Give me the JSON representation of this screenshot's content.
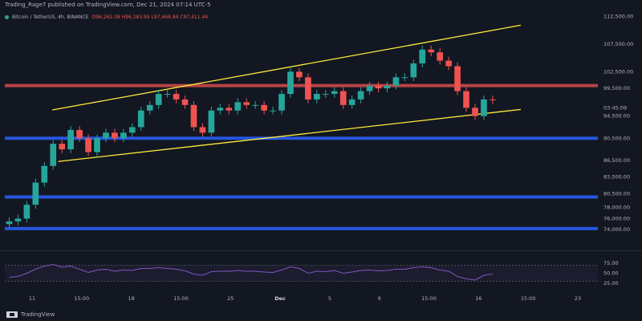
{
  "header": {
    "publisher": "Trading_Rage7 published on TradingView.com, Dec 21, 2024 07:14 UTC-5"
  },
  "legend": {
    "symbol": "Bitcoin / TetherUS, 4h, BINANCE",
    "ohlc": "O96,262.08  H96,283.95  L97,668.84  C97,411.44"
  },
  "footer": {
    "brand": "TradingView"
  },
  "colors": {
    "background": "#131722",
    "channel": "#ffeb3b",
    "support": "#2962ff",
    "resistance": "#ef5350",
    "bull": "#26a69a",
    "bear": "#ef5350",
    "rsi": "#7e57c2"
  },
  "chart_data": {
    "type": "candlestick",
    "symbol": "BTC/USDT",
    "timeframe": "4h",
    "y_ticks": [
      "112,500.00",
      "107,500.00",
      "102,500.00",
      "99,500.00",
      "94,500.00",
      "90,500.00",
      "86,500.00",
      "83,500.00",
      "80,500.00",
      "78,000.00",
      "76,000.00",
      "74,000.00"
    ],
    "price_label": "03:45:09",
    "x_ticks": [
      "11",
      "15:00",
      "18",
      "15:00",
      "25",
      "Dec",
      "5",
      "9",
      "15:00",
      "16",
      "15:00",
      "23"
    ],
    "rsi_ticks": [
      "75.00",
      "50.00",
      "25.00"
    ],
    "ylim": [
      72000,
      114000
    ],
    "levels": {
      "resistance": 100000,
      "support": [
        90500,
        79900,
        74200
      ]
    },
    "channel_upper": [
      [
        0.08,
        95600
      ],
      [
        0.87,
        110900
      ]
    ],
    "channel_lower": [
      [
        0.09,
        86300
      ],
      [
        0.87,
        95700
      ]
    ],
    "closes": [
      75500,
      76000,
      78500,
      82500,
      85500,
      89500,
      88500,
      92000,
      90500,
      88000,
      90500,
      91500,
      90500,
      91500,
      92500,
      95500,
      96500,
      98500,
      98500,
      97500,
      96500,
      92500,
      91500,
      95500,
      96000,
      95500,
      97000,
      96500,
      96500,
      95500,
      95500,
      98500,
      102500,
      101500,
      97500,
      98500,
      98500,
      99000,
      96500,
      97500,
      99000,
      100000,
      99500,
      100000,
      101500,
      101500,
      104000,
      106500,
      106000,
      104500,
      103500,
      99000,
      96000,
      94500,
      97500,
      97400
    ],
    "rsi": [
      40,
      42,
      50,
      60,
      68,
      72,
      65,
      68,
      60,
      52,
      58,
      60,
      55,
      58,
      57,
      62,
      62,
      64,
      62,
      60,
      56,
      48,
      45,
      54,
      55,
      55,
      57,
      55,
      55,
      53,
      52,
      58,
      66,
      62,
      50,
      55,
      54,
      57,
      50,
      53,
      57,
      58,
      56,
      57,
      60,
      60,
      64,
      66,
      64,
      58,
      55,
      42,
      36,
      33,
      45,
      48
    ]
  }
}
